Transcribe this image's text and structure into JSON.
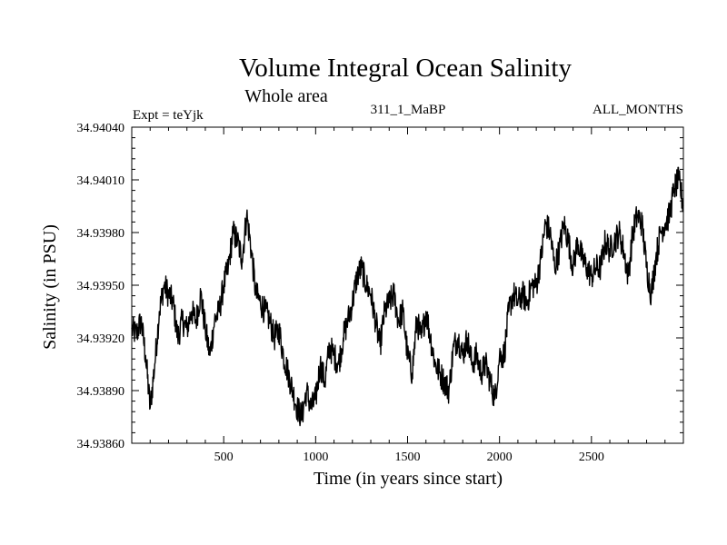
{
  "chart_data": {
    "type": "line",
    "title": "Volume Integral Ocean Salinity",
    "subtitle": "Whole area",
    "annotations": {
      "left": "Expt = teYjk",
      "center": "311_1_MaBP",
      "right": "ALL_MONTHS"
    },
    "xlabel": "Time (in years since start)",
    "ylabel": "Salinity (in PSU)",
    "xlim": [
      0,
      3000
    ],
    "ylim": [
      34.9386,
      34.9404
    ],
    "xticks": [
      500,
      1000,
      1500,
      2000,
      2500
    ],
    "xtick_labels": [
      "500",
      "1000",
      "1500",
      "2000",
      "2500"
    ],
    "yticks": [
      34.9386,
      34.9389,
      34.9392,
      34.9395,
      34.9398,
      34.9401,
      34.9404
    ],
    "ytick_labels": [
      "34.93860",
      "34.93890",
      "34.93920",
      "34.93950",
      "34.93980",
      "34.94010",
      "34.94040"
    ],
    "grid": false,
    "series": [
      {
        "name": "Salinity",
        "color": "#000000",
        "x": [
          0,
          25,
          50,
          75,
          100,
          125,
          150,
          175,
          200,
          225,
          250,
          275,
          300,
          325,
          350,
          375,
          400,
          425,
          450,
          475,
          500,
          525,
          550,
          575,
          600,
          625,
          650,
          675,
          700,
          725,
          750,
          775,
          800,
          825,
          850,
          875,
          900,
          925,
          950,
          975,
          1000,
          1025,
          1050,
          1075,
          1100,
          1125,
          1150,
          1175,
          1200,
          1225,
          1250,
          1275,
          1300,
          1325,
          1350,
          1375,
          1400,
          1425,
          1450,
          1475,
          1500,
          1525,
          1550,
          1575,
          1600,
          1625,
          1650,
          1675,
          1700,
          1725,
          1750,
          1775,
          1800,
          1825,
          1850,
          1875,
          1900,
          1925,
          1950,
          1975,
          2000,
          2025,
          2050,
          2075,
          2100,
          2125,
          2150,
          2175,
          2200,
          2225,
          2250,
          2275,
          2300,
          2325,
          2350,
          2375,
          2400,
          2425,
          2450,
          2475,
          2500,
          2525,
          2550,
          2575,
          2600,
          2625,
          2650,
          2675,
          2700,
          2725,
          2750,
          2775,
          2800,
          2825,
          2850,
          2875,
          2900,
          2925,
          2950,
          2975,
          3000
        ],
        "values": [
          34.93925,
          34.93922,
          34.9393,
          34.9391,
          34.9388,
          34.93905,
          34.93935,
          34.9395,
          34.93945,
          34.9394,
          34.9392,
          34.9393,
          34.93925,
          34.93935,
          34.9393,
          34.93945,
          34.93925,
          34.9391,
          34.9393,
          34.93935,
          34.9395,
          34.9396,
          34.9398,
          34.93975,
          34.93965,
          34.9399,
          34.9397,
          34.93945,
          34.9394,
          34.93935,
          34.9393,
          34.9392,
          34.93925,
          34.9391,
          34.939,
          34.9389,
          34.9388,
          34.93875,
          34.9389,
          34.9388,
          34.93885,
          34.93905,
          34.93895,
          34.93915,
          34.9391,
          34.93905,
          34.9392,
          34.9393,
          34.9394,
          34.93955,
          34.9396,
          34.9395,
          34.93945,
          34.9393,
          34.93915,
          34.93935,
          34.9394,
          34.93945,
          34.9393,
          34.93935,
          34.9391,
          34.939,
          34.9393,
          34.9392,
          34.93935,
          34.9392,
          34.93905,
          34.939,
          34.93895,
          34.9389,
          34.93915,
          34.9392,
          34.9391,
          34.9392,
          34.93905,
          34.9391,
          34.939,
          34.93905,
          34.93895,
          34.93885,
          34.9391,
          34.9391,
          34.93935,
          34.93945,
          34.9394,
          34.93945,
          34.9394,
          34.9395,
          34.9395,
          34.93965,
          34.93985,
          34.9398,
          34.9396,
          34.9397,
          34.93985,
          34.93975,
          34.9396,
          34.93975,
          34.93965,
          34.9396,
          34.93955,
          34.9396,
          34.9396,
          34.93975,
          34.9397,
          34.93975,
          34.9398,
          34.9397,
          34.93955,
          34.9398,
          34.9399,
          34.93985,
          34.9396,
          34.93945,
          34.93965,
          34.9398,
          34.93985,
          34.9399,
          34.94005,
          34.9401,
          34.93995
        ]
      }
    ]
  }
}
